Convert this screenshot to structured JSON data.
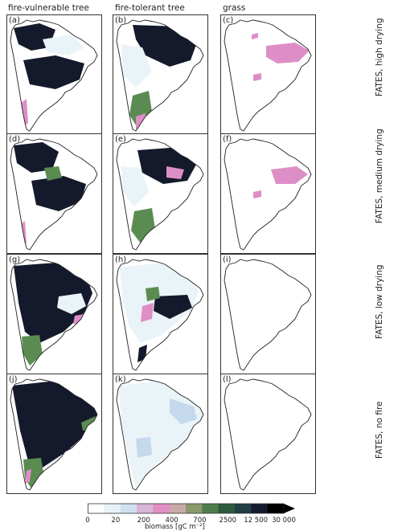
{
  "columns": [
    "fire-vulnerable tree",
    "fire-tolerant tree",
    "grass"
  ],
  "rows": [
    "FATES, high drying",
    "FATES, medium drying",
    "FATES, low drying",
    "FATES, no fire"
  ],
  "panels": [
    [
      "(a)",
      "(b)",
      "(c)"
    ],
    [
      "(d)",
      "(e)",
      "(f)"
    ],
    [
      "(g)",
      "(h)",
      "(i)"
    ],
    [
      "(j)",
      "(k)",
      "(l)"
    ]
  ],
  "colorbar": {
    "label": "biomass [gC m⁻²]",
    "ticks": [
      "0",
      "20",
      "200",
      "400",
      "700",
      "2500",
      "12 500",
      "30 000"
    ],
    "colors": [
      "#ffffff",
      "#e6f2f8",
      "#cfe0ef",
      "#d8b4d8",
      "#e28fc4",
      "#c9a8a8",
      "#8a9a6a",
      "#4f7d4a",
      "#2d5a3c",
      "#213d45",
      "#151a30",
      "#000000"
    ]
  },
  "colors": {
    "very_low": "#eaf3f8",
    "low": "#c5d9ec",
    "pink": "#de8ec6",
    "green": "#5a8c52",
    "dark_green": "#2e5c3e",
    "very_dark": "#141a2c"
  }
}
